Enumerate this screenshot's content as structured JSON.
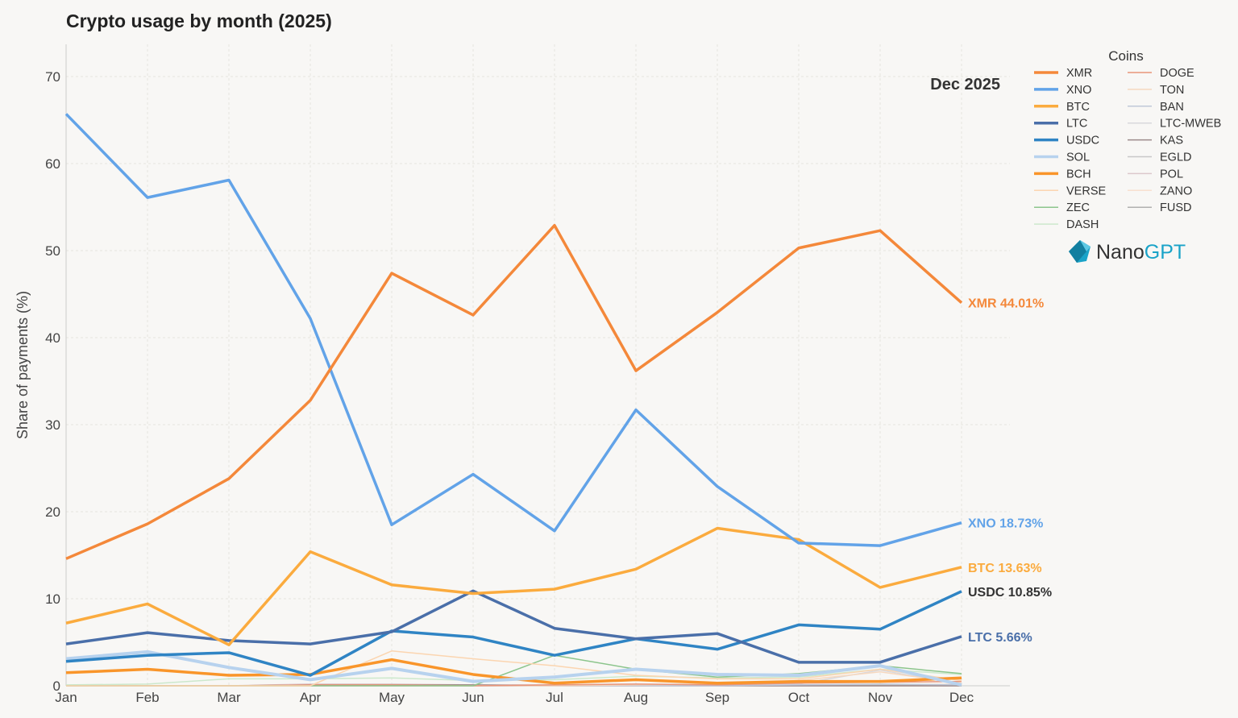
{
  "chart_data": {
    "type": "line",
    "title": "Crypto usage by month (2025)",
    "subtitle": "Dec 2025",
    "xlabel": "",
    "ylabel": "Share of payments (%)",
    "ylim": [
      0,
      74
    ],
    "yticks": [
      0,
      10,
      20,
      30,
      40,
      50,
      60,
      70
    ],
    "grid": true,
    "legend": {
      "title": "Coins",
      "placement": "top-right"
    },
    "categories": [
      "Jan",
      "Feb",
      "Mar",
      "Apr",
      "May",
      "Jun",
      "Jul",
      "Aug",
      "Sep",
      "Oct",
      "Nov",
      "Dec"
    ],
    "series": [
      {
        "name": "XMR",
        "color": "#f4883a",
        "width": 3.5,
        "values": [
          14.6,
          18.6,
          23.8,
          32.8,
          47.4,
          42.6,
          52.9,
          36.2,
          42.9,
          50.3,
          52.3,
          44.01
        ],
        "end_label": "XMR 44.01%"
      },
      {
        "name": "XNO",
        "color": "#62a3e8",
        "width": 3.5,
        "values": [
          65.7,
          56.1,
          58.1,
          42.2,
          18.5,
          24.3,
          17.8,
          31.7,
          22.9,
          16.4,
          16.1,
          18.73
        ],
        "end_label": "XNO 18.73%"
      },
      {
        "name": "BTC",
        "color": "#fbab3e",
        "width": 3.5,
        "values": [
          7.2,
          9.4,
          4.7,
          15.4,
          11.6,
          10.6,
          11.1,
          13.4,
          18.1,
          16.8,
          11.3,
          13.63
        ],
        "end_label": "BTC 13.63%"
      },
      {
        "name": "LTC",
        "color": "#4a6fa9",
        "width": 3.5,
        "values": [
          4.8,
          6.1,
          5.2,
          4.8,
          6.2,
          10.9,
          6.6,
          5.4,
          6.0,
          2.7,
          2.7,
          5.66
        ],
        "end_label": "LTC 5.66%"
      },
      {
        "name": "USDC",
        "color": "#2f84c4",
        "width": 3.5,
        "values": [
          2.8,
          3.5,
          3.8,
          1.2,
          6.3,
          5.6,
          3.5,
          5.4,
          4.2,
          7.0,
          6.5,
          10.85
        ],
        "end_label": "USDC 10.85%",
        "end_label_color": "#333333"
      },
      {
        "name": "SOL",
        "color": "#b7d2ee",
        "width": 4,
        "values": [
          3.1,
          3.9,
          2.1,
          0.7,
          2.0,
          0.5,
          1.0,
          1.9,
          1.3,
          1.2,
          2.3,
          0.1
        ]
      },
      {
        "name": "BCH",
        "color": "#f9952a",
        "width": 3.5,
        "values": [
          1.5,
          1.9,
          1.2,
          1.3,
          3.0,
          1.3,
          0.3,
          0.7,
          0.3,
          0.5,
          0.5,
          0.9
        ]
      },
      {
        "name": "VERSE",
        "color": "#fbd5b0",
        "width": 1.5,
        "values": [
          0,
          0,
          0,
          0,
          4.0,
          3.1,
          2.3,
          1.2,
          0.8,
          0.8,
          1.9,
          0.6
        ]
      },
      {
        "name": "ZEC",
        "color": "#8cc58c",
        "width": 1.5,
        "values": [
          0,
          0,
          0,
          0,
          0,
          0,
          3.5,
          1.9,
          1.0,
          1.4,
          2.3,
          1.4
        ]
      },
      {
        "name": "DASH",
        "color": "#cce8cc",
        "width": 1.5,
        "values": [
          0.1,
          0.2,
          0.8,
          0.8,
          0.9,
          0.6,
          0.7,
          1.1,
          0.9,
          1.0,
          1.9,
          1.3
        ]
      },
      {
        "name": "DOGE",
        "color": "#e8957a",
        "width": 1.5,
        "values": [
          0,
          0,
          0,
          0.1,
          0.1,
          0,
          0.1,
          0.2,
          0.1,
          0.3,
          0.4,
          0.5
        ]
      },
      {
        "name": "TON",
        "color": "#f6d8bf",
        "width": 1.5,
        "values": [
          0,
          0,
          0,
          0,
          0,
          0,
          0,
          0.1,
          0.2,
          0.6,
          1.6,
          0.3
        ]
      },
      {
        "name": "BAN",
        "color": "#c0c8d8",
        "width": 1.5,
        "values": [
          0,
          0,
          0,
          0,
          0,
          0,
          0,
          0,
          0,
          0.1,
          0.2,
          0.1
        ]
      },
      {
        "name": "LTC-MWEB",
        "color": "#d8d8dc",
        "width": 1.5,
        "values": [
          0,
          0,
          0,
          0,
          0,
          0,
          0,
          0,
          0,
          0.2,
          1.8,
          0.2
        ]
      },
      {
        "name": "KAS",
        "color": "#9c8a8a",
        "width": 1.5,
        "values": [
          0,
          0,
          0,
          0.1,
          0.1,
          0.1,
          0,
          0,
          0,
          0,
          0,
          0
        ]
      },
      {
        "name": "EGLD",
        "color": "#c8c8c8",
        "width": 1.5,
        "values": [
          0,
          0,
          0,
          0,
          0,
          0,
          0,
          0,
          0,
          0.1,
          0.1,
          0
        ]
      },
      {
        "name": "POL",
        "color": "#dcc8cc",
        "width": 1.5,
        "values": [
          0,
          0,
          0,
          0.2,
          0.2,
          0.1,
          0.1,
          0.1,
          0,
          0,
          0,
          0
        ]
      },
      {
        "name": "ZANO",
        "color": "#f8e0d0",
        "width": 1.5,
        "values": [
          0,
          0,
          0,
          0,
          0,
          0,
          0,
          0,
          0,
          0.1,
          0.1,
          0.2
        ]
      },
      {
        "name": "FUSD",
        "color": "#b0b0b0",
        "width": 1.5,
        "values": [
          0,
          0,
          0,
          0,
          0,
          0,
          0,
          0,
          0,
          0,
          0,
          0
        ]
      }
    ]
  },
  "branding": {
    "logo_text_1": "Nano",
    "logo_text_2": "GPT",
    "logo_color": "#1aa3c8"
  }
}
